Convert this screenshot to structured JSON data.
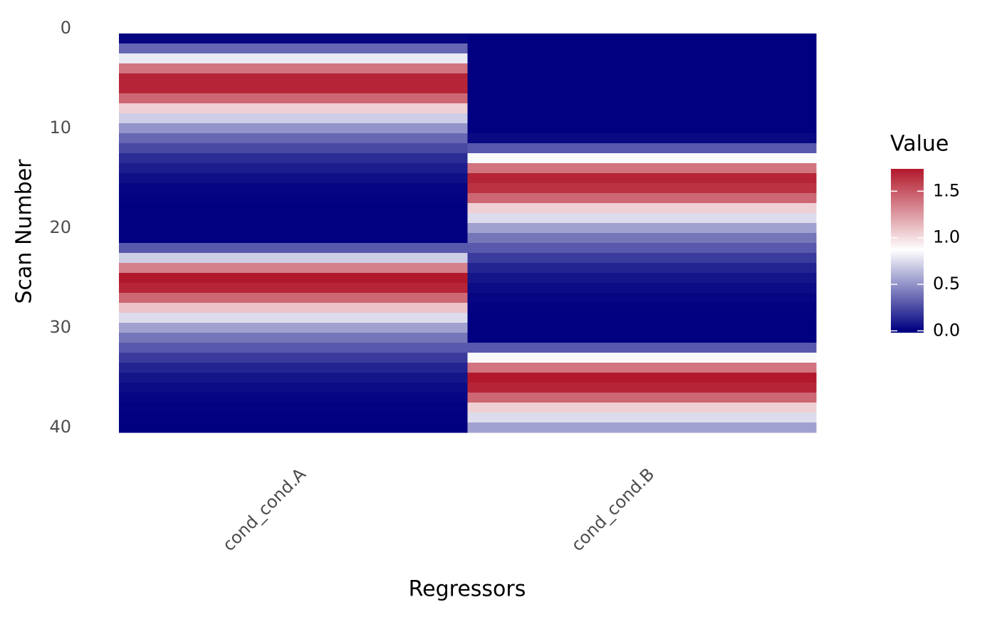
{
  "chart_data": {
    "type": "heatmap",
    "x_label": "Regressors",
    "y_label": "Scan Number",
    "legend_title": "Value",
    "y": [
      1,
      2,
      3,
      4,
      5,
      6,
      7,
      8,
      9,
      10,
      11,
      12,
      13,
      14,
      15,
      16,
      17,
      18,
      19,
      20,
      21,
      22,
      23,
      24,
      25,
      26,
      27,
      28,
      29,
      30,
      31,
      32,
      33,
      34,
      35,
      36,
      37,
      38,
      39,
      40
    ],
    "series": [
      {
        "name": "cond_cond.A",
        "values": [
          0.02,
          0.35,
          0.8,
          1.4,
          1.7,
          1.7,
          1.45,
          1.05,
          0.7,
          0.5,
          0.35,
          0.25,
          0.15,
          0.1,
          0.05,
          0.02,
          0.01,
          0,
          0,
          0,
          0,
          0.3,
          0.7,
          1.35,
          1.75,
          1.7,
          1.45,
          1.1,
          0.75,
          0.55,
          0.4,
          0.3,
          0.2,
          0.12,
          0.07,
          0.04,
          0.02,
          0.01,
          0,
          0
        ]
      },
      {
        "name": "cond_cond.B",
        "values": [
          0,
          0,
          0,
          0,
          0,
          0,
          0,
          0,
          0,
          0,
          0.03,
          0.3,
          0.85,
          1.4,
          1.7,
          1.65,
          1.45,
          1.05,
          0.75,
          0.55,
          0.4,
          0.3,
          0.2,
          0.12,
          0.07,
          0.04,
          0.02,
          0.01,
          0,
          0,
          0,
          0.3,
          0.85,
          1.4,
          1.75,
          1.7,
          1.45,
          1.05,
          0.75,
          0.55
        ]
      }
    ],
    "ylim": [
      0,
      40.5
    ],
    "yticks": [
      0,
      10,
      20,
      30,
      40
    ],
    "y_reversed": true,
    "colorscale": [
      {
        "value": 0,
        "color": "#000080"
      },
      {
        "value": 0.87,
        "color": "#ffffff"
      },
      {
        "value": 1.75,
        "color": "#b2182b"
      }
    ],
    "colorbar_lim": [
      -0.02,
      1.74
    ],
    "colorbar_ticks": [
      {
        "value": 0,
        "label": "0.0"
      },
      0.5,
      {
        "value": 1,
        "label": "1.0"
      },
      1.5
    ]
  }
}
